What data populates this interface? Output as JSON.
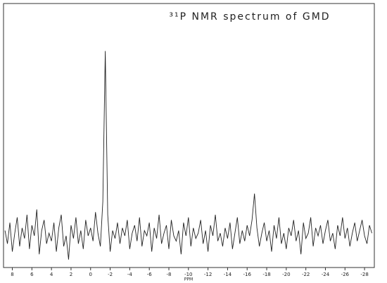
{
  "chart_data": {
    "type": "line",
    "title": "³¹P NMR spectrum of GMD",
    "x_label": "PPM",
    "color": "#222222",
    "x": [
      8.75,
      8.5,
      8.25,
      8,
      7.75,
      7.5,
      7.25,
      7,
      6.75,
      6.5,
      6.25,
      6,
      5.75,
      5.5,
      5.25,
      5,
      4.75,
      4.5,
      4.25,
      4,
      3.75,
      3.5,
      3.25,
      3,
      2.75,
      2.5,
      2.25,
      2,
      1.75,
      1.5,
      1.25,
      1,
      0.75,
      0.5,
      0.25,
      0,
      -0.25,
      -0.5,
      -0.75,
      -1,
      -1.25,
      -1.5,
      -1.75,
      -2,
      -2.25,
      -2.5,
      -2.75,
      -3,
      -3.25,
      -3.5,
      -3.75,
      -4,
      -4.25,
      -4.5,
      -4.75,
      -5,
      -5.25,
      -5.5,
      -5.75,
      -6,
      -6.25,
      -6.5,
      -6.75,
      -7,
      -7.25,
      -7.5,
      -7.75,
      -8,
      -8.25,
      -8.5,
      -8.75,
      -9,
      -9.25,
      -9.5,
      -9.75,
      -10,
      -10.25,
      -10.5,
      -10.75,
      -11,
      -11.25,
      -11.5,
      -11.75,
      -12,
      -12.25,
      -12.5,
      -12.75,
      -13,
      -13.25,
      -13.5,
      -13.75,
      -14,
      -14.25,
      -14.5,
      -14.75,
      -15,
      -15.25,
      -15.5,
      -15.75,
      -16,
      -16.25,
      -16.5,
      -16.75,
      -17,
      -17.25,
      -17.5,
      -17.75,
      -18,
      -18.25,
      -18.5,
      -18.75,
      -19,
      -19.25,
      -19.5,
      -19.75,
      -20,
      -20.25,
      -20.5,
      -20.75,
      -21,
      -21.25,
      -21.5,
      -21.75,
      -22,
      -22.25,
      -22.5,
      -22.75,
      -23,
      -23.25,
      -23.5,
      -23.75,
      -24,
      -24.25,
      -24.5,
      -24.75,
      -25,
      -25.25,
      -25.5,
      -25.75,
      -26,
      -26.25,
      -26.5,
      -26.75,
      -27,
      -27.25,
      -27.5,
      -27.75,
      -28,
      -28.25,
      -28.5,
      -28.75
    ],
    "values": [
      14,
      9,
      17,
      6,
      13,
      19,
      8,
      15,
      11,
      20,
      7,
      16,
      12,
      22,
      5,
      14,
      18,
      9,
      13,
      10,
      17,
      6,
      15,
      20,
      8,
      12,
      3,
      16,
      11,
      19,
      9,
      14,
      7,
      18,
      12,
      15,
      10,
      21,
      13,
      8,
      25,
      82,
      20,
      6,
      14,
      11,
      17,
      9,
      15,
      12,
      18,
      7,
      13,
      16,
      10,
      19,
      8,
      14,
      12,
      17,
      6,
      15,
      11,
      20,
      9,
      13,
      16,
      7,
      18,
      12,
      10,
      14,
      5,
      17,
      12,
      19,
      8,
      15,
      11,
      13,
      18,
      9,
      14,
      6,
      16,
      12,
      20,
      10,
      13,
      8,
      15,
      11,
      17,
      7,
      13,
      19,
      9,
      14,
      10,
      16,
      12,
      18,
      28,
      15,
      8,
      13,
      17,
      10,
      14,
      6,
      16,
      11,
      19,
      9,
      13,
      7,
      15,
      12,
      18,
      10,
      14,
      5,
      17,
      11,
      13,
      19,
      8,
      15,
      12,
      16,
      9,
      14,
      18,
      10,
      13,
      7,
      16,
      12,
      19,
      11,
      15,
      8,
      13,
      17,
      10,
      14,
      18,
      12,
      9,
      16,
      13
    ],
    "xlim": [
      8.9,
      -29
    ],
    "ylim": [
      0,
      100
    ],
    "xticks": [
      8,
      6,
      4,
      2,
      0,
      -2,
      -4,
      -6,
      -8,
      -10,
      -12,
      -14,
      -16,
      -18,
      -20,
      -22,
      -24,
      -26,
      -28
    ]
  }
}
